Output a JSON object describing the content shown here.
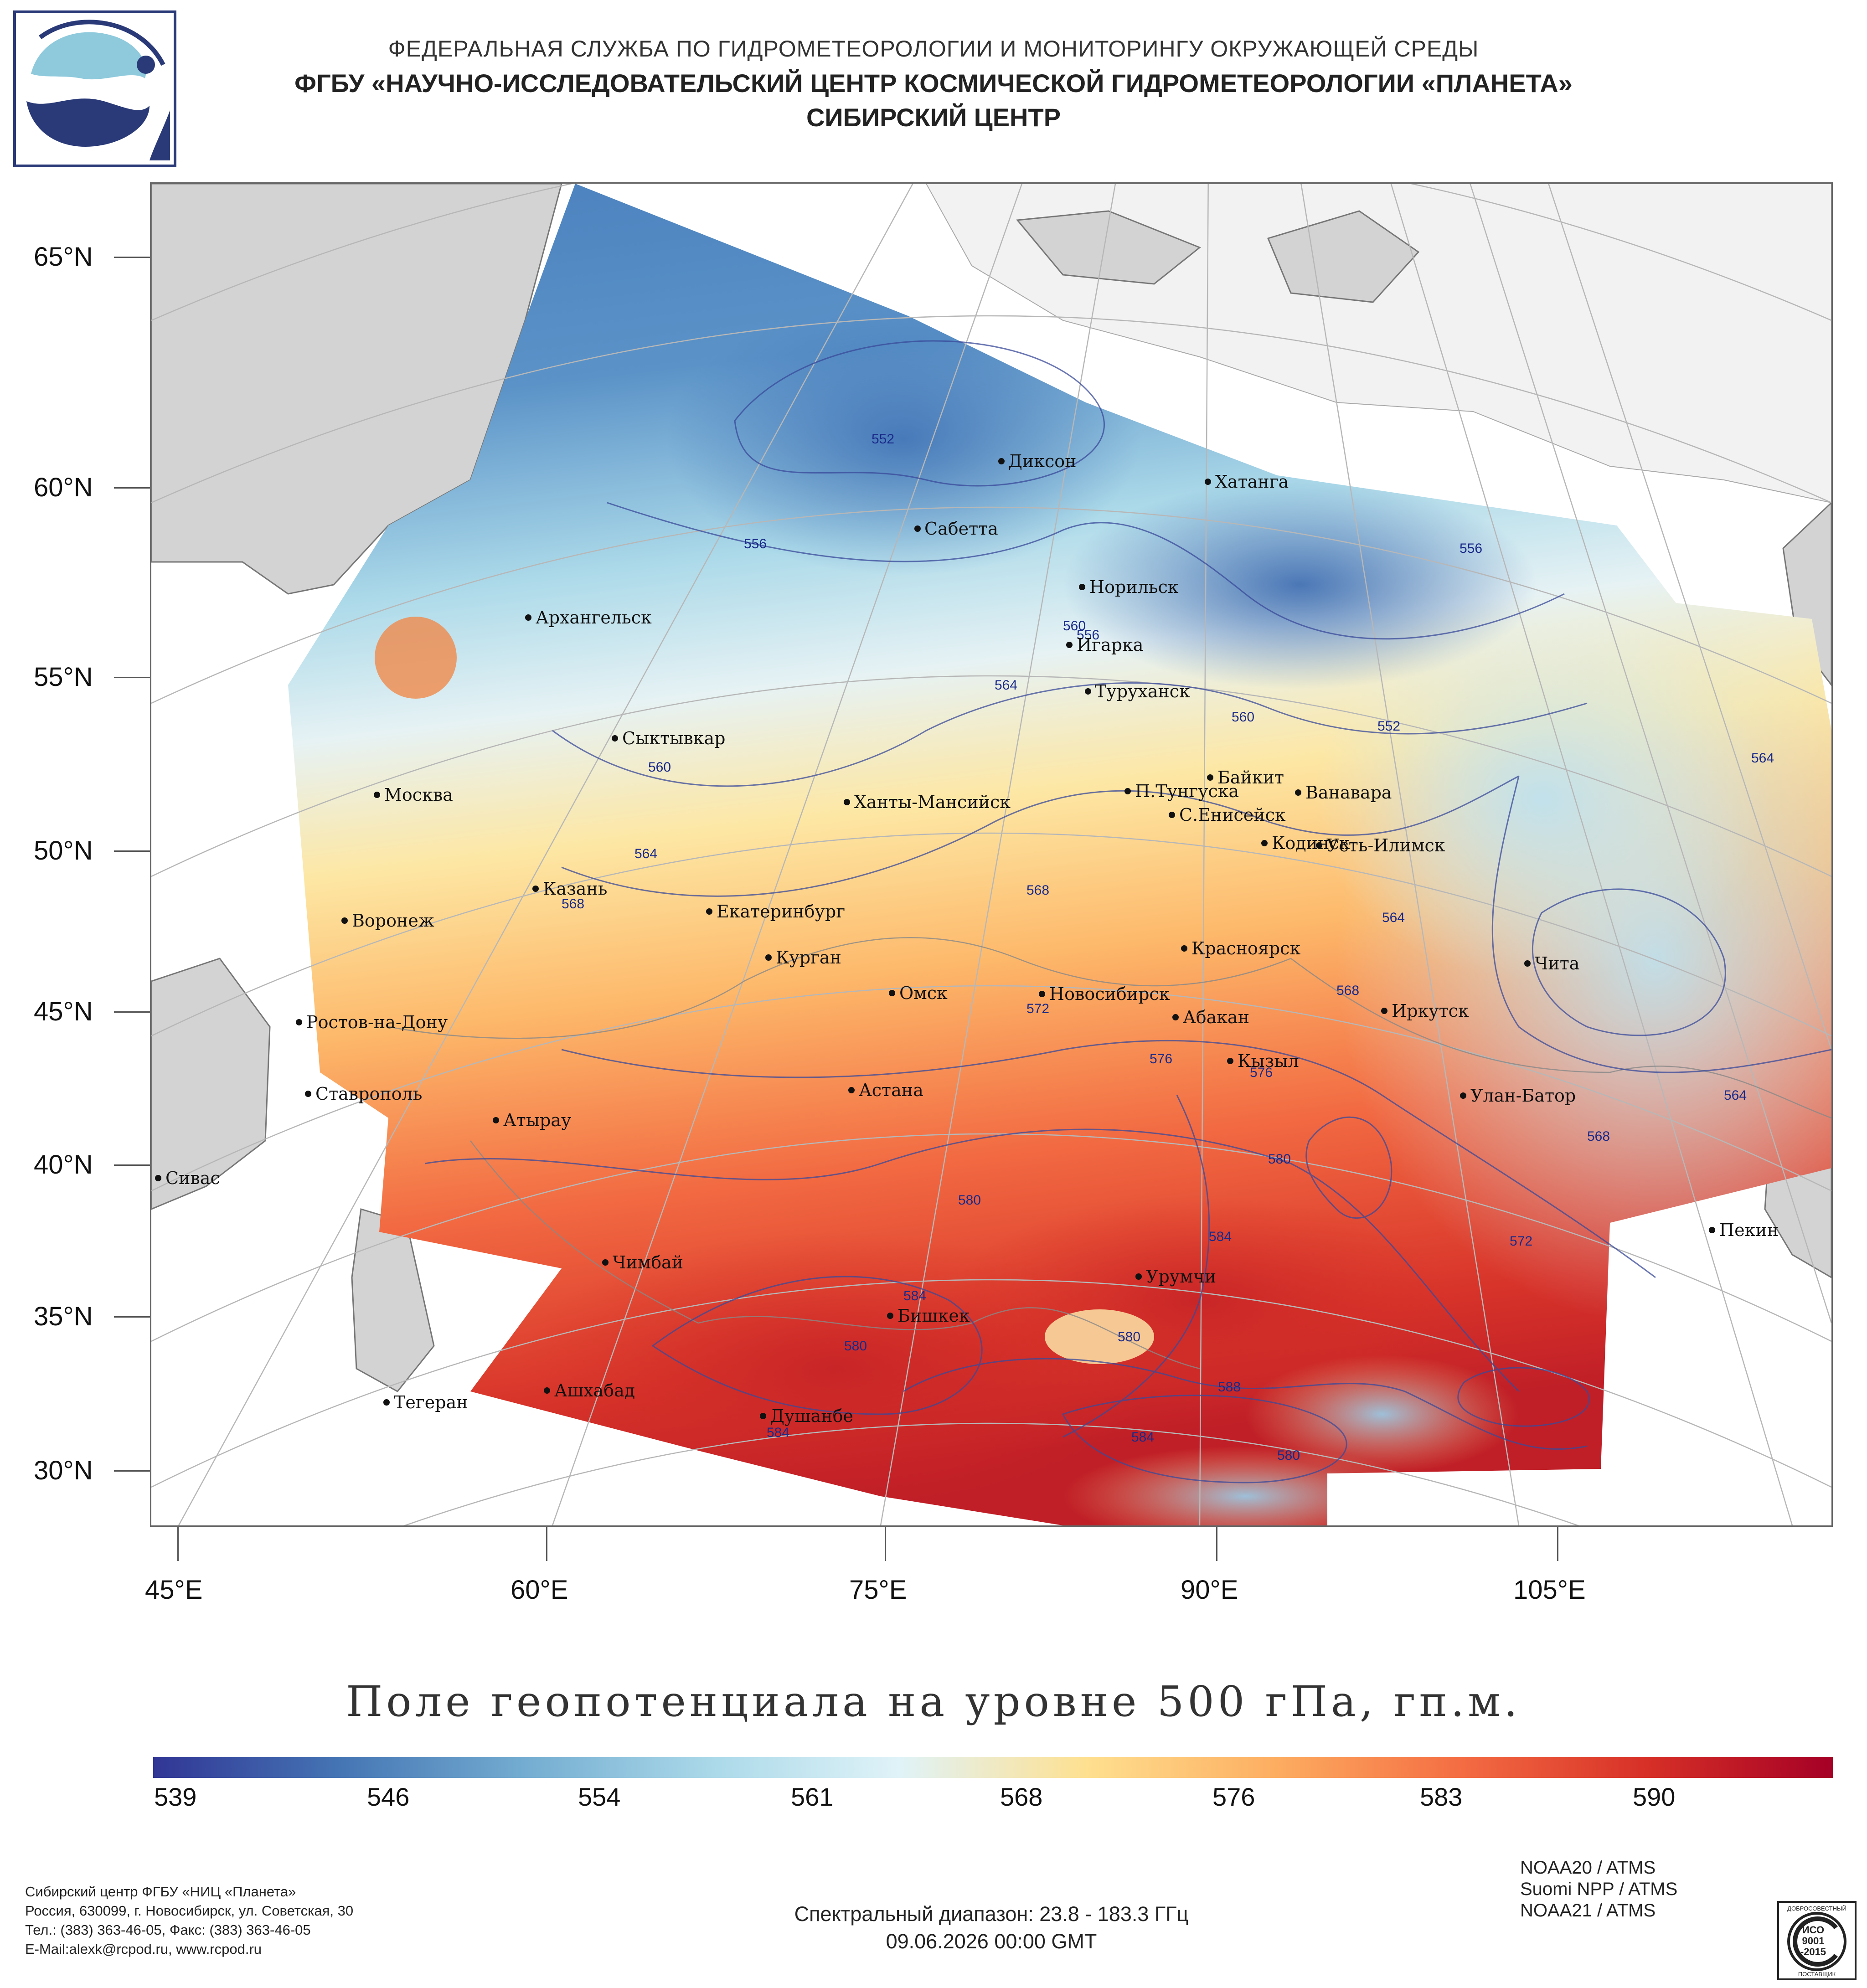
{
  "header": {
    "line1": "ФЕДЕРАЛЬНАЯ СЛУЖБА ПО ГИДРОМЕТЕОРОЛОГИИ И МОНИТОРИНГУ ОКРУЖАЮЩЕЙ СРЕДЫ",
    "line2": "ФГБУ «НАУЧНО-ИССЛЕДОВАТЕЛЬСКИЙ ЦЕНТР КОСМИЧЕСКОЙ ГИДРОМЕТЕОРОЛОГИИ «ПЛАНЕТА»",
    "line3": "СИБИРСКИЙ ЦЕНТР"
  },
  "map": {
    "lat_labels": [
      "65°N",
      "60°N",
      "55°N",
      "50°N",
      "45°N",
      "40°N",
      "35°N",
      "30°N"
    ],
    "lon_labels": [
      "45°E",
      "60°E",
      "75°E",
      "90°E",
      "105°E"
    ],
    "cities": [
      {
        "name": "Диксон"
      },
      {
        "name": "Хатанга"
      },
      {
        "name": "Сабетта"
      },
      {
        "name": "Норильск"
      },
      {
        "name": "Архангельск"
      },
      {
        "name": "Игарка"
      },
      {
        "name": "Туруханск"
      },
      {
        "name": "Сыктывкар"
      },
      {
        "name": "Байкит"
      },
      {
        "name": "П.Тунгуска"
      },
      {
        "name": "Ванавара"
      },
      {
        "name": "Москва"
      },
      {
        "name": "Ханты-Мансийск"
      },
      {
        "name": "С.Енисейск"
      },
      {
        "name": "Кодинск"
      },
      {
        "name": "Усть-Илимск"
      },
      {
        "name": "Казань"
      },
      {
        "name": "Екатеринбург"
      },
      {
        "name": "Воронеж"
      },
      {
        "name": "Красноярск"
      },
      {
        "name": "Курган"
      },
      {
        "name": "Чита"
      },
      {
        "name": "Омск"
      },
      {
        "name": "Новосибирск"
      },
      {
        "name": "Иркутск"
      },
      {
        "name": "Ростов-на-Дону"
      },
      {
        "name": "Абакан"
      },
      {
        "name": "Кызыл"
      },
      {
        "name": "Ставрополь"
      },
      {
        "name": "Астана"
      },
      {
        "name": "Улан-Батор"
      },
      {
        "name": "Атырау"
      },
      {
        "name": "Сивас"
      },
      {
        "name": "Пекин"
      },
      {
        "name": "Чимбай"
      },
      {
        "name": "Урумчи"
      },
      {
        "name": "Бишкек"
      },
      {
        "name": "Ашхабад"
      },
      {
        "name": "Тегеран"
      },
      {
        "name": "Душанбе"
      }
    ],
    "contour_labels": [
      "552",
      "556",
      "556",
      "560",
      "556",
      "564",
      "560",
      "560",
      "564",
      "564",
      "568",
      "568",
      "564",
      "568",
      "572",
      "576",
      "576",
      "580",
      "580",
      "584",
      "572",
      "584",
      "580",
      "580",
      "588",
      "584",
      "580",
      "584",
      "564",
      "568",
      "552"
    ]
  },
  "title": "Поле геопотенциала на уровне 500 гПа, гп.м.",
  "colorbar": {
    "labels": [
      "539",
      "546",
      "554",
      "561",
      "568",
      "576",
      "583",
      "590"
    ],
    "min": 539,
    "max": 596,
    "colors": [
      "#313695",
      "#4575b4",
      "#74add1",
      "#abd9e9",
      "#e0f3f8",
      "#fee090",
      "#fdae61",
      "#f46d43",
      "#d73027",
      "#a50026"
    ]
  },
  "footer": {
    "org_lines": [
      "Сибирский центр ФГБУ «НИЦ «Планета»",
      "Россия, 630099, г. Новосибирск, ул. Советская, 30",
      "Тел.: (383) 363-46-05, Факс: (383) 363-46-05",
      "E-Mail:alexk@rcpod.ru, www.rcpod.ru"
    ],
    "spectral": "Спектральный диапазон: 23.8 - 183.3 ГГц",
    "datetime": "09.06.2026 00:00 GMT",
    "satellites": [
      "NOAA20 / ATMS",
      "Suomi NPP / ATMS",
      "NOAA21 / ATMS"
    ],
    "iso_text": [
      "ДОБРОСОВЕСТНЫЙ",
      "ИСО",
      "9001",
      "-2015",
      "ПОСТАВЩИК"
    ]
  }
}
